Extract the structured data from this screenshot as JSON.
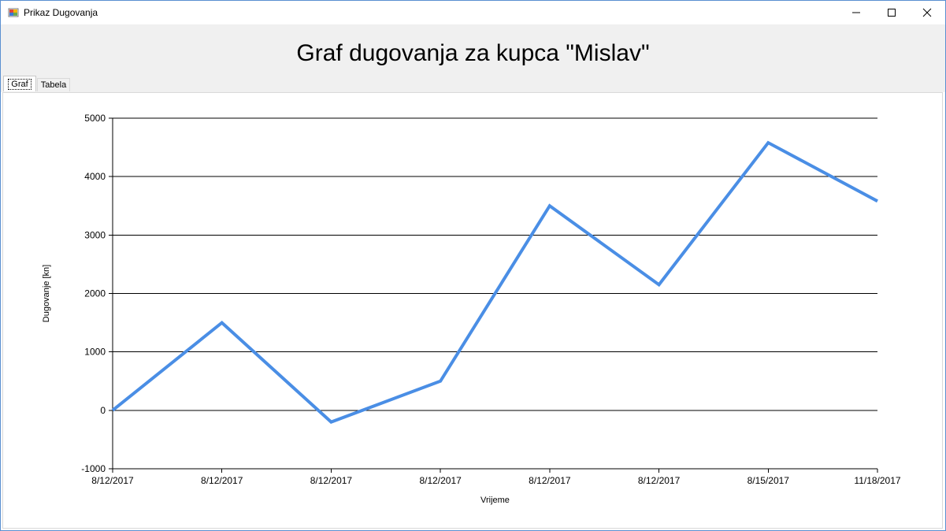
{
  "window": {
    "title": "Prikaz Dugovanja",
    "controls": {
      "minimize_icon": "minimize-icon",
      "maximize_icon": "maximize-icon",
      "close_icon": "close-icon"
    }
  },
  "header": {
    "title": "Graf dugovanja za kupca \"Mislav\""
  },
  "tabs": [
    {
      "label": "Graf",
      "selected": true
    },
    {
      "label": "Tabela",
      "selected": false
    }
  ],
  "colors": {
    "series": "#4a8ee5",
    "header_bg": "#f0f0f0"
  },
  "chart_data": {
    "type": "line",
    "title": "",
    "xlabel": "Vrijeme",
    "ylabel": "Dugovanje [kn]",
    "ylim": [
      -1000,
      5000
    ],
    "yticks": [
      -1000,
      0,
      1000,
      2000,
      3000,
      4000,
      5000
    ],
    "grid": true,
    "categories": [
      "8/12/2017",
      "8/12/2017",
      "8/12/2017",
      "8/12/2017",
      "8/12/2017",
      "8/12/2017",
      "8/15/2017",
      "11/18/2017"
    ],
    "series": [
      {
        "values": [
          0,
          1500,
          -200,
          500,
          3500,
          2150,
          4580,
          3580
        ]
      }
    ]
  }
}
